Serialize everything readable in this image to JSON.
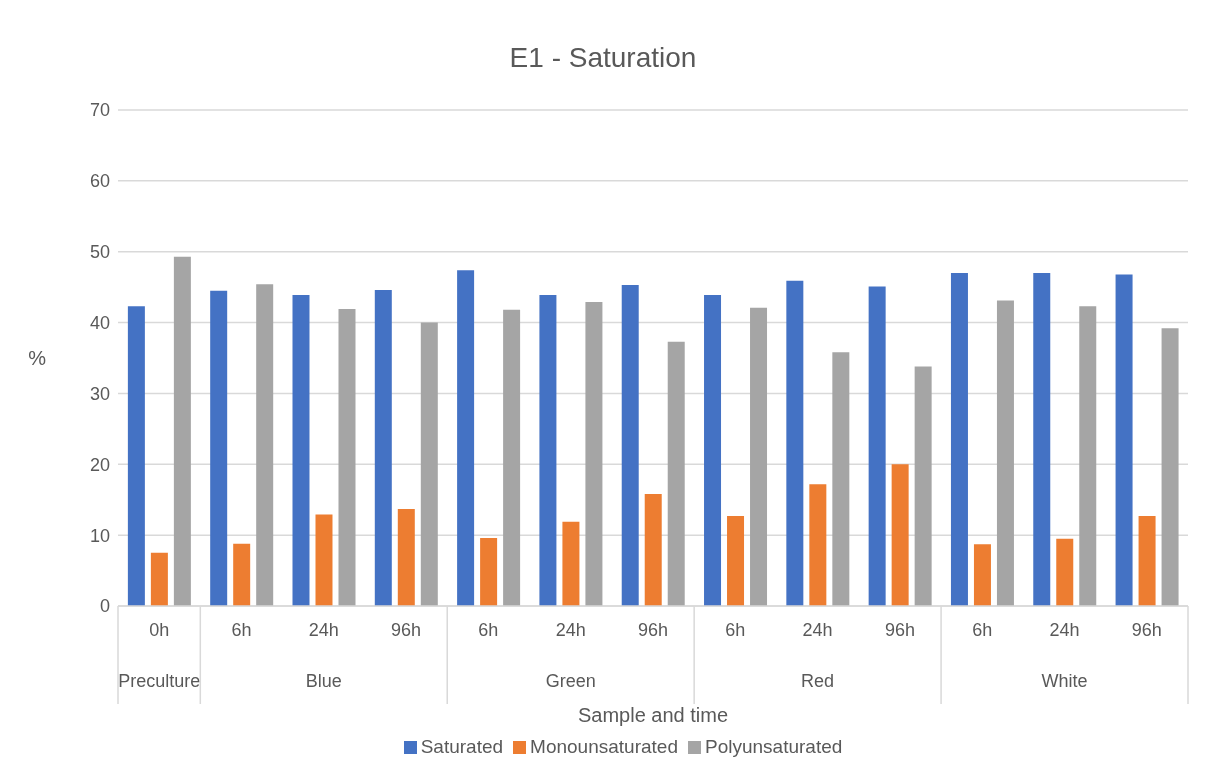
{
  "chart_data": {
    "type": "bar",
    "title": "E1 - Saturation",
    "xlabel": "Sample and time",
    "ylabel": "%",
    "categories": [
      "0h",
      "6h",
      "24h",
      "96h",
      "6h",
      "24h",
      "96h",
      "6h",
      "24h",
      "96h",
      "6h",
      "24h",
      "96h"
    ],
    "series": [
      {
        "name": "Saturated",
        "color": "#4472c4",
        "values": [
          42.3,
          44.5,
          43.9,
          44.6,
          47.4,
          43.9,
          45.3,
          43.9,
          45.9,
          45.1,
          47.0,
          47.0,
          46.8
        ]
      },
      {
        "name": "Monounsaturated",
        "color": "#ed7d31",
        "values": [
          7.5,
          8.8,
          12.9,
          13.7,
          9.6,
          11.9,
          15.8,
          12.7,
          17.2,
          20.0,
          8.7,
          9.5,
          12.7
        ]
      },
      {
        "name": "Polyunsaturated",
        "color": "#a5a5a5",
        "values": [
          49.3,
          45.4,
          41.9,
          40.0,
          41.8,
          42.9,
          37.3,
          42.1,
          35.8,
          33.8,
          43.1,
          42.3,
          39.2
        ]
      }
    ],
    "annotations": [
      "Preculture",
      "Blue",
      "Green",
      "Red",
      "White"
    ],
    "ylim": [
      0,
      70
    ],
    "yticks": [
      0,
      10,
      20,
      30,
      40,
      50,
      60,
      70
    ],
    "grid": "y",
    "legend": "bottom"
  }
}
